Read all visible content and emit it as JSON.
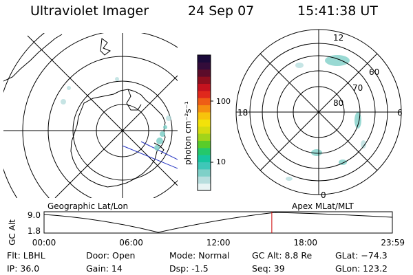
{
  "header": {
    "title": "Ultraviolet Imager",
    "date": "24 Sep 07",
    "time": "15:41:38 UT"
  },
  "colorbar": {
    "unit_label": "photon cm⁻²s⁻¹",
    "ticks": [
      "100",
      "10"
    ],
    "tick_values": [
      100,
      10
    ],
    "scale": "log",
    "colors": [
      "#e8f4f4",
      "#b8dede",
      "#7fd0c8",
      "#3fc7b8",
      "#17c5a0",
      "#24c86b",
      "#59cc2a",
      "#a2d41a",
      "#d6dc10",
      "#f3e20a",
      "#f7c30c",
      "#f58f10",
      "#ee5d16",
      "#e0281c",
      "#c4121e",
      "#8e0f1e",
      "#5b0c2a",
      "#330c3a",
      "#1b0a3a"
    ]
  },
  "left_map": {
    "title": "Geographic Lat/Lon"
  },
  "right_map": {
    "title": "Apex MLat/MLT",
    "lat_labels": [
      "80",
      "70",
      "60"
    ],
    "mlt_labels": [
      "12",
      "18",
      "6",
      "0"
    ]
  },
  "timeline": {
    "y_label": "GC Alt",
    "y_ticks": [
      "9.0",
      "1.8"
    ],
    "x_ticks": [
      "00:00",
      "06:00",
      "12:00",
      "18:00",
      "23:59"
    ],
    "current_time_marker": "15:41:38",
    "marker_color": "#cc0000"
  },
  "info": {
    "filter": "Flt: LBHL",
    "ip": "IP: 36.0",
    "door": "Door: Open",
    "gain": "Gain: 14",
    "mode": "Mode: Normal",
    "dsp": "Dsp:    -1.5",
    "gc_alt": "GC Alt: 8.8 Re",
    "seq": "Seq: 39",
    "glat": "GLat: −74.3",
    "glon": "GLon: 123.2"
  }
}
